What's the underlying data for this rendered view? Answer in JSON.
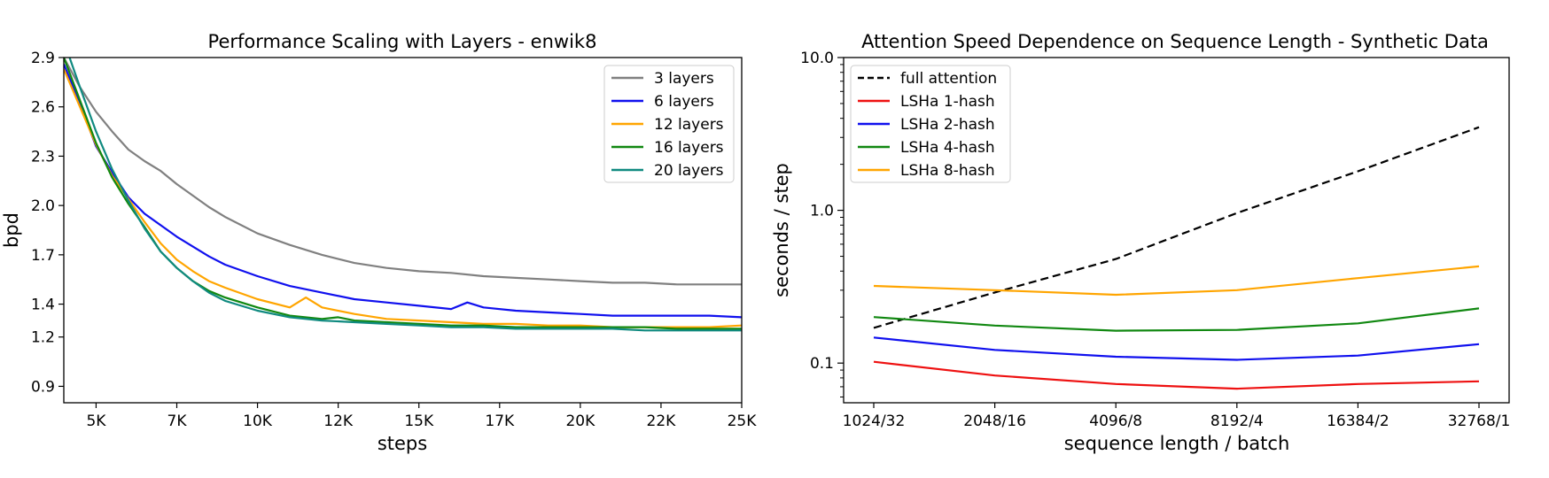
{
  "chart_data": [
    {
      "type": "line",
      "title": "Performance Scaling with Layers - enwik8",
      "xlabel": "steps",
      "ylabel": "bpd",
      "xlim": [
        4000,
        25000
      ],
      "ylim": [
        0.8,
        2.9
      ],
      "x_ticks": [
        5000,
        7500,
        10000,
        12500,
        15000,
        17500,
        20000,
        22500,
        25000
      ],
      "x_tick_labels": [
        "5K",
        "7K",
        "10K",
        "12K",
        "15K",
        "17K",
        "20K",
        "22K",
        "25K"
      ],
      "y_ticks": [
        0.9,
        1.2,
        1.4,
        1.7,
        2.0,
        2.3,
        2.6,
        2.9
      ],
      "y_tick_labels": [
        "0.9",
        "1.2",
        "1.4",
        "1.7",
        "2.0",
        "2.3",
        "2.6",
        "2.9"
      ],
      "legend_position": "top-right",
      "grid": false,
      "series": [
        {
          "name": "3 layers",
          "color": "#808080",
          "x": [
            4000,
            4500,
            5000,
            5500,
            6000,
            6500,
            7000,
            7500,
            8000,
            8500,
            9000,
            10000,
            11000,
            12000,
            13000,
            14000,
            15000,
            16000,
            17000,
            18000,
            19000,
            20000,
            21000,
            22000,
            23000,
            24000,
            25000
          ],
          "y": [
            2.9,
            2.72,
            2.57,
            2.45,
            2.34,
            2.27,
            2.21,
            2.13,
            2.06,
            1.99,
            1.93,
            1.83,
            1.76,
            1.7,
            1.65,
            1.62,
            1.6,
            1.59,
            1.57,
            1.56,
            1.55,
            1.54,
            1.53,
            1.53,
            1.52,
            1.52,
            1.52
          ]
        },
        {
          "name": "6 layers",
          "color": "#1010ee",
          "x": [
            4000,
            4500,
            5000,
            5500,
            6000,
            6500,
            7000,
            7500,
            8000,
            8500,
            9000,
            10000,
            11000,
            12000,
            13000,
            14000,
            15000,
            16000,
            16500,
            17000,
            18000,
            19000,
            20000,
            21000,
            22000,
            23000,
            24000,
            25000
          ],
          "y": [
            2.86,
            2.62,
            2.36,
            2.2,
            2.05,
            1.95,
            1.88,
            1.81,
            1.75,
            1.69,
            1.64,
            1.57,
            1.51,
            1.47,
            1.43,
            1.41,
            1.39,
            1.37,
            1.41,
            1.38,
            1.36,
            1.35,
            1.34,
            1.33,
            1.33,
            1.33,
            1.33,
            1.32
          ]
        },
        {
          "name": "12 layers",
          "color": "#ffa500",
          "x": [
            4000,
            4500,
            5000,
            5500,
            6000,
            6500,
            7000,
            7500,
            8000,
            8500,
            9000,
            10000,
            11000,
            11500,
            12000,
            13000,
            14000,
            15000,
            16000,
            17000,
            18000,
            19000,
            20000,
            21000,
            22000,
            23000,
            24000,
            25000
          ],
          "y": [
            2.83,
            2.6,
            2.37,
            2.18,
            2.04,
            1.9,
            1.77,
            1.67,
            1.6,
            1.54,
            1.5,
            1.43,
            1.38,
            1.44,
            1.38,
            1.34,
            1.31,
            1.3,
            1.29,
            1.28,
            1.28,
            1.27,
            1.27,
            1.26,
            1.26,
            1.26,
            1.26,
            1.27
          ]
        },
        {
          "name": "16 layers",
          "color": "#118811",
          "x": [
            4000,
            4500,
            5000,
            5500,
            6000,
            6500,
            7000,
            7500,
            8000,
            8500,
            9000,
            10000,
            11000,
            12000,
            12500,
            13000,
            14000,
            15000,
            16000,
            17000,
            18000,
            19000,
            20000,
            21000,
            22000,
            23000,
            24000,
            25000
          ],
          "y": [
            2.9,
            2.64,
            2.38,
            2.17,
            2.01,
            1.87,
            1.72,
            1.62,
            1.54,
            1.48,
            1.44,
            1.38,
            1.33,
            1.31,
            1.32,
            1.3,
            1.29,
            1.28,
            1.27,
            1.27,
            1.26,
            1.26,
            1.26,
            1.26,
            1.26,
            1.25,
            1.25,
            1.25
          ]
        },
        {
          "name": "20 layers",
          "color": "#108a80",
          "x": [
            4000,
            4500,
            5000,
            5500,
            6000,
            6500,
            7000,
            7500,
            8000,
            8500,
            9000,
            10000,
            11000,
            12000,
            13000,
            14000,
            15000,
            16000,
            17000,
            18000,
            19000,
            20000,
            21000,
            22000,
            23000,
            24000,
            25000
          ],
          "y": [
            3.0,
            2.72,
            2.45,
            2.22,
            2.03,
            1.86,
            1.72,
            1.62,
            1.54,
            1.47,
            1.42,
            1.36,
            1.32,
            1.3,
            1.29,
            1.28,
            1.27,
            1.26,
            1.26,
            1.25,
            1.25,
            1.25,
            1.25,
            1.24,
            1.24,
            1.24,
            1.24
          ]
        }
      ]
    },
    {
      "type": "line",
      "title": "Attention Speed Dependence on Sequence Length - Synthetic Data",
      "xlabel": "sequence length / batch",
      "ylabel": "seconds / step",
      "y_scale": "log",
      "ylim": [
        0.055,
        10.0
      ],
      "categories": [
        "1024/32",
        "2048/16",
        "4096/8",
        "8192/4",
        "16384/2",
        "32768/1"
      ],
      "y_ticks": [
        0.1,
        1.0,
        10.0
      ],
      "y_tick_labels": [
        "0.1",
        "1.0",
        "10.0"
      ],
      "legend_position": "top-left",
      "grid": false,
      "series": [
        {
          "name": "full attention",
          "color": "#000000",
          "dashed": true,
          "values": [
            0.17,
            0.29,
            0.48,
            0.96,
            1.8,
            3.5
          ]
        },
        {
          "name": "LSHa 1-hash",
          "color": "#ee1111",
          "values": [
            0.102,
            0.083,
            0.073,
            0.068,
            0.073,
            0.076
          ]
        },
        {
          "name": "LSHa 2-hash",
          "color": "#1010ee",
          "values": [
            0.147,
            0.122,
            0.11,
            0.105,
            0.112,
            0.133
          ]
        },
        {
          "name": "LSHa 4-hash",
          "color": "#118811",
          "values": [
            0.2,
            0.176,
            0.163,
            0.165,
            0.182,
            0.228
          ]
        },
        {
          "name": "LSHa 8-hash",
          "color": "#ffa500",
          "values": [
            0.32,
            0.3,
            0.28,
            0.3,
            0.36,
            0.43
          ]
        }
      ]
    }
  ]
}
